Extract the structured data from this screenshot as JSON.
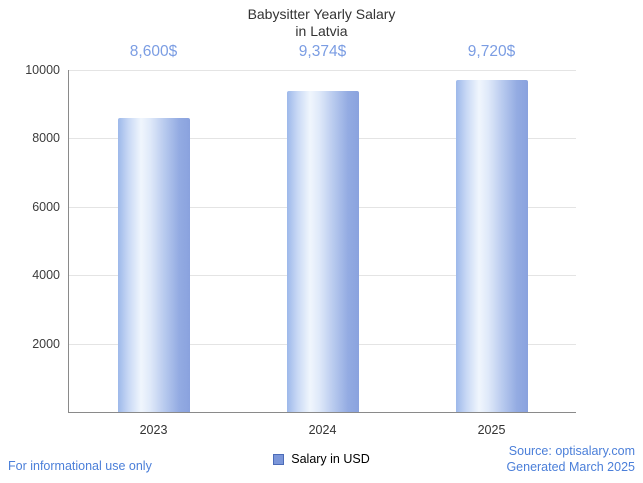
{
  "title": {
    "line1": "Babysitter Yearly Salary",
    "line2": "in Latvia"
  },
  "legend": {
    "label": "Salary in USD"
  },
  "footer": {
    "left": "For informational use only",
    "source": "Source: optisalary.com",
    "generated": "Generated March 2025"
  },
  "colors": {
    "value_label": "#7b9de3",
    "footer_text": "#4b7fd9",
    "bar_light": "#f0f6fd",
    "bar_edge_left": "#9db8ea",
    "bar_edge_right": "#8aa2de",
    "legend_swatch": "#7b96d9",
    "axis": "#8a8a8a",
    "gridline": "#e4e4e4",
    "title_text": "#333333"
  },
  "chart_data": {
    "type": "bar",
    "title": "Babysitter Yearly Salary in Latvia",
    "categories": [
      "2023",
      "2024",
      "2025"
    ],
    "values": [
      8600,
      9374,
      9720
    ],
    "value_labels": [
      "8,600$",
      "9,374$",
      "9,720$"
    ],
    "series": [
      {
        "name": "Salary in USD",
        "values": [
          8600,
          9374,
          9720
        ]
      }
    ],
    "xlabel": "",
    "ylabel": "",
    "ylim": [
      0,
      10000
    ],
    "yticks": [
      2000,
      4000,
      6000,
      8000,
      10000
    ],
    "grid": true,
    "legend_position": "bottom"
  }
}
